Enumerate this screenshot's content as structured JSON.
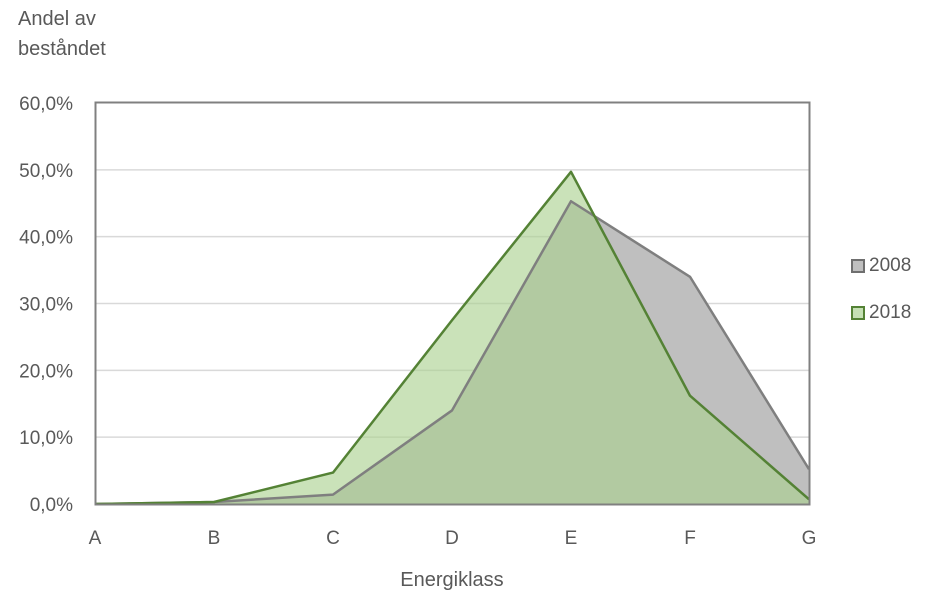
{
  "chart_data": {
    "type": "area",
    "categories": [
      "A",
      "B",
      "C",
      "D",
      "E",
      "F",
      "G"
    ],
    "series": [
      {
        "name": "2008",
        "values": [
          0.0,
          0.3,
          1.4,
          14.0,
          45.3,
          34.0,
          5.2
        ],
        "fill": "#bfbfbf",
        "stroke": "#7f7f7f"
      },
      {
        "name": "2018",
        "values": [
          0.0,
          0.3,
          4.7,
          27.5,
          49.7,
          16.2,
          0.7
        ],
        "fill": "#a9d18e",
        "stroke": "#548235"
      }
    ],
    "yticks": [
      "0,0%",
      "10,0%",
      "20,0%",
      "30,0%",
      "40,0%",
      "50,0%",
      "60,0%"
    ],
    "ylim": [
      0,
      60
    ],
    "ylabel": "Andel av beståndet",
    "ylabel_lines": [
      "Andel av",
      "beståndet"
    ],
    "xlabel": "Energiklass",
    "grid": true,
    "legend_position": "right"
  },
  "legend": {
    "items": [
      "2008",
      "2018"
    ]
  }
}
